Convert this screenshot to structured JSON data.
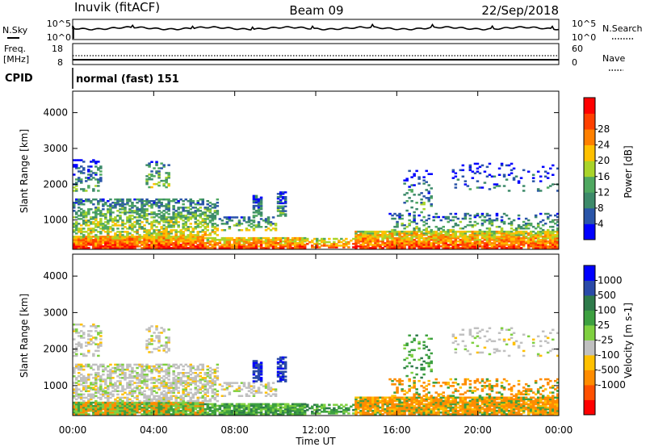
{
  "header": {
    "station": "Inuvik (fitACF)",
    "beam": "Beam 09",
    "date": "22/Sep/2018"
  },
  "top_panels": {
    "nsky_label": "N.Sky",
    "nsearch_label": "N.Search",
    "nsky_ticks": [
      "10^5",
      "10^0"
    ],
    "nsearch_ticks": [
      "10^5",
      "10^0"
    ],
    "freq_label_1": "Freq.",
    "freq_label_2": "[MHz]",
    "freq_ticks": [
      "18",
      "8"
    ],
    "nave_label": "Nave",
    "nave_ticks": [
      "60",
      "0"
    ],
    "cpid_label": "CPID",
    "cpid_text": "normal (fast) 151"
  },
  "colors": {
    "power_scale": [
      "#0000ff",
      "#2a55a8",
      "#3d8a6a",
      "#4fa860",
      "#a9d42a",
      "#ffc000",
      "#ff8000",
      "#ff4000",
      "#ff0000"
    ],
    "velocity_scale": [
      "#ff0000",
      "#ff5000",
      "#ff8c00",
      "#ffc000",
      "#c0c0c0",
      "#7fd040",
      "#3da040",
      "#2e7a4a",
      "#2a4aa8",
      "#0000ff"
    ]
  },
  "chart_data": [
    {
      "type": "heatmap",
      "name": "power",
      "ylabel": "Slant Range [km]",
      "xlabel": "Time UT",
      "x_ticks": [
        "00:00",
        "04:00",
        "08:00",
        "12:00",
        "16:00",
        "20:00",
        "00:00"
      ],
      "y_ticks": [
        1000,
        2000,
        3000,
        4000
      ],
      "ylim": [
        180,
        4600
      ],
      "colorbar_label": "Power [dB]",
      "colorbar_ticks": [
        "4",
        "8",
        "12",
        "16",
        "20",
        "24",
        "28"
      ],
      "colorbar_range": [
        0,
        32
      ]
    },
    {
      "type": "heatmap",
      "name": "velocity",
      "ylabel": "Slant Range [km]",
      "xlabel": "Time UT",
      "x_ticks": [
        "00:00",
        "04:00",
        "08:00",
        "12:00",
        "16:00",
        "20:00",
        "00:00"
      ],
      "y_ticks": [
        1000,
        2000,
        3000,
        4000
      ],
      "ylim": [
        180,
        4600
      ],
      "colorbar_label": "Velocity [m s-1]",
      "colorbar_ticks": [
        "1000",
        "500",
        "100",
        "25",
        "-25",
        "-100",
        "-500",
        "-1000"
      ]
    }
  ]
}
